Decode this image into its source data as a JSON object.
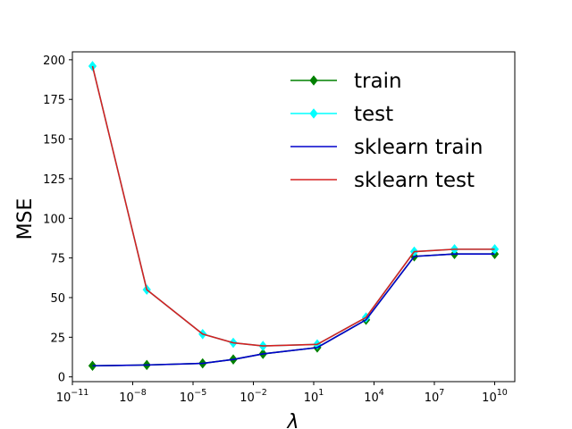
{
  "chart_data": {
    "type": "line",
    "title": "",
    "xlabel": "λ",
    "ylabel": "MSE",
    "x_scale": "log",
    "xlim": [
      1e-11,
      100000000000.0
    ],
    "ylim": [
      -3,
      205
    ],
    "grid": false,
    "legend_position": "top-right",
    "x": [
      1e-10,
      5e-08,
      3e-05,
      0.001,
      0.03,
      15.0,
      4000.0,
      1000000.0,
      100000000.0,
      10000000000.0
    ],
    "xticks": [
      {
        "value": 1e-11,
        "base": "10",
        "exp": "−11"
      },
      {
        "value": 1e-08,
        "base": "10",
        "exp": "−8"
      },
      {
        "value": 1e-05,
        "base": "10",
        "exp": "−5"
      },
      {
        "value": 0.01,
        "base": "10",
        "exp": "−2"
      },
      {
        "value": 10.0,
        "base": "10",
        "exp": "1"
      },
      {
        "value": 10000.0,
        "base": "10",
        "exp": "4"
      },
      {
        "value": 10000000.0,
        "base": "10",
        "exp": "7"
      },
      {
        "value": 10000000000.0,
        "base": "10",
        "exp": "10"
      }
    ],
    "yticks": [
      0,
      25,
      50,
      75,
      100,
      125,
      150,
      175,
      200
    ],
    "series": [
      {
        "name": "train",
        "color": "#008000",
        "marker": "diamond",
        "values": [
          7,
          7.5,
          8.5,
          11,
          14.5,
          18.5,
          36,
          76,
          77.5,
          77.5
        ]
      },
      {
        "name": "test",
        "color": "#00ffff",
        "marker": "diamond",
        "values": [
          196,
          55,
          27,
          21.5,
          19.5,
          20.5,
          37.5,
          79,
          80.5,
          80.5
        ]
      },
      {
        "name": "sklearn train",
        "color": "#0000cc",
        "marker": "none",
        "values": [
          7,
          7.5,
          8.5,
          11,
          14.5,
          18.5,
          36,
          76,
          77.5,
          77.5
        ]
      },
      {
        "name": "sklearn test",
        "color": "#d62020",
        "marker": "none",
        "values": [
          196,
          55,
          27,
          21.5,
          19.5,
          20.5,
          37.5,
          79,
          80.5,
          80.5
        ]
      }
    ]
  }
}
